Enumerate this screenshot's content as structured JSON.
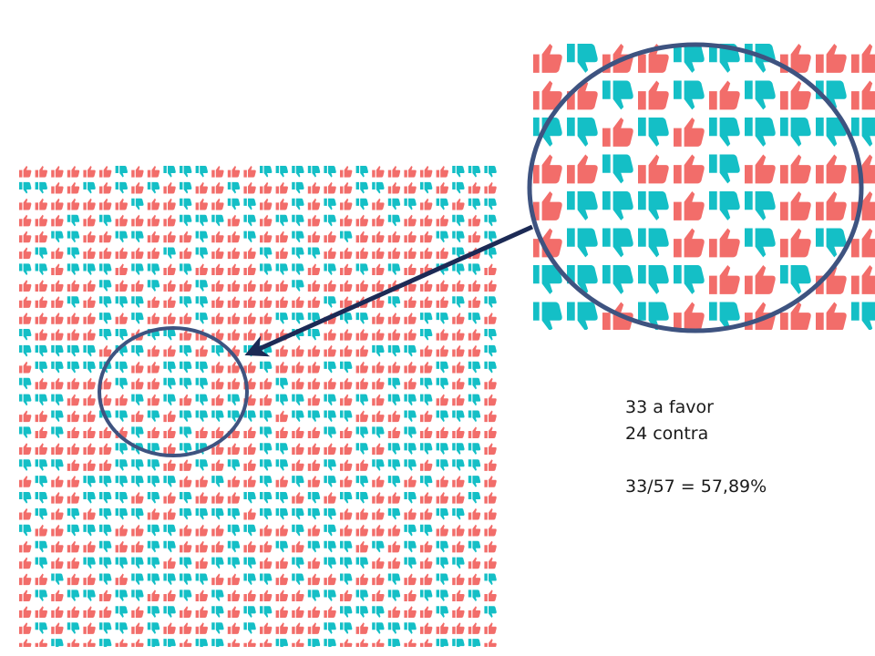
{
  "figure": {
    "colors": {
      "favor": "#f26d6a",
      "contra": "#14bfc6",
      "circle_stroke": "#3e5380",
      "arrow": "#1c2a55",
      "background": "#ffffff"
    },
    "icons": {
      "favor": "thumbs-up-icon",
      "contra": "thumbs-down-icon"
    },
    "grid": {
      "rows": 30,
      "cols": 30
    },
    "zoom": {
      "rows": 8,
      "cols": 10
    }
  },
  "annotation": {
    "favor_line": "33 a favor",
    "contra_line": "24 contra",
    "ratio_line": "33/57 = 57,89%"
  }
}
